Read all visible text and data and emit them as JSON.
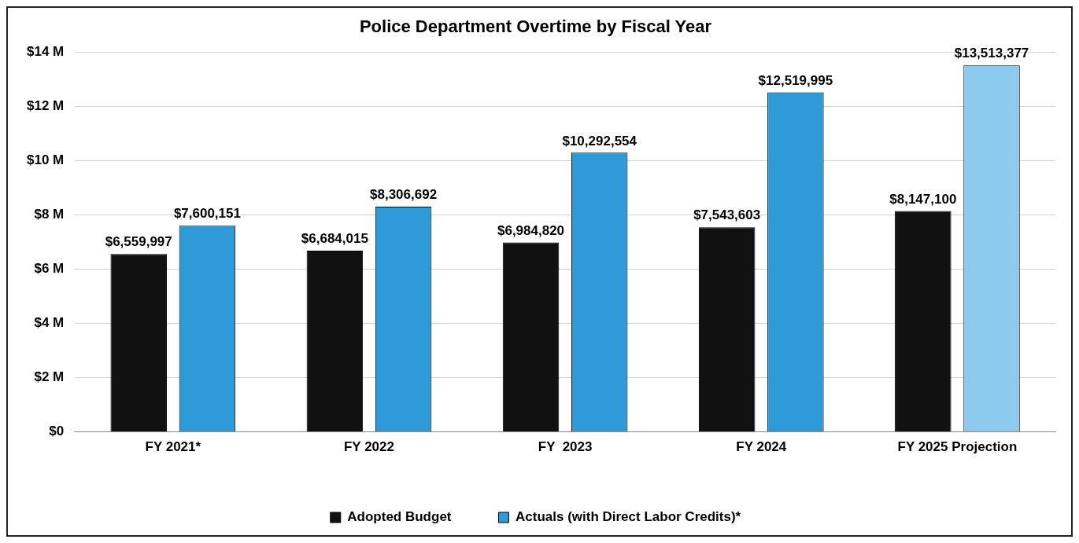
{
  "chart_data": {
    "type": "bar",
    "title": "Police Department Overtime by Fiscal Year",
    "categories": [
      "FY 2021*",
      "FY 2022",
      "FY  2023",
      "FY 2024",
      "FY 2025 Projection"
    ],
    "series": [
      {
        "name": "Adopted Budget",
        "color": "#111111",
        "values": [
          6559997,
          6684015,
          6984820,
          7543603,
          8147100
        ],
        "value_labels": [
          "$6,559,997",
          "$6,684,015",
          "$6,984,820",
          "$7,543,603",
          "$8,147,100"
        ]
      },
      {
        "name": "Actuals (with Direct Labor Credits)*",
        "color": "#2e9ad8",
        "colors": [
          "#2e9ad8",
          "#2e9ad8",
          "#2e9ad8",
          "#2e9ad8",
          "#8ccaee"
        ],
        "values": [
          7600151,
          8306692,
          10292554,
          12519995,
          13513377
        ],
        "value_labels": [
          "$7,600,151",
          "$8,306,692",
          "$10,292,554",
          "$12,519,995",
          "$13,513,377"
        ]
      }
    ],
    "ylim": [
      0,
      14000000
    ],
    "yticks": [
      {
        "value": 0,
        "label": "$0"
      },
      {
        "value": 2000000,
        "label": "$2 M"
      },
      {
        "value": 4000000,
        "label": "$4 M"
      },
      {
        "value": 6000000,
        "label": "$6 M"
      },
      {
        "value": 8000000,
        "label": "$8 M"
      },
      {
        "value": 10000000,
        "label": "$10 M"
      },
      {
        "value": 12000000,
        "label": "$12 M"
      },
      {
        "value": 14000000,
        "label": "$14 M"
      }
    ],
    "grid": "y",
    "legend": "bottom"
  }
}
